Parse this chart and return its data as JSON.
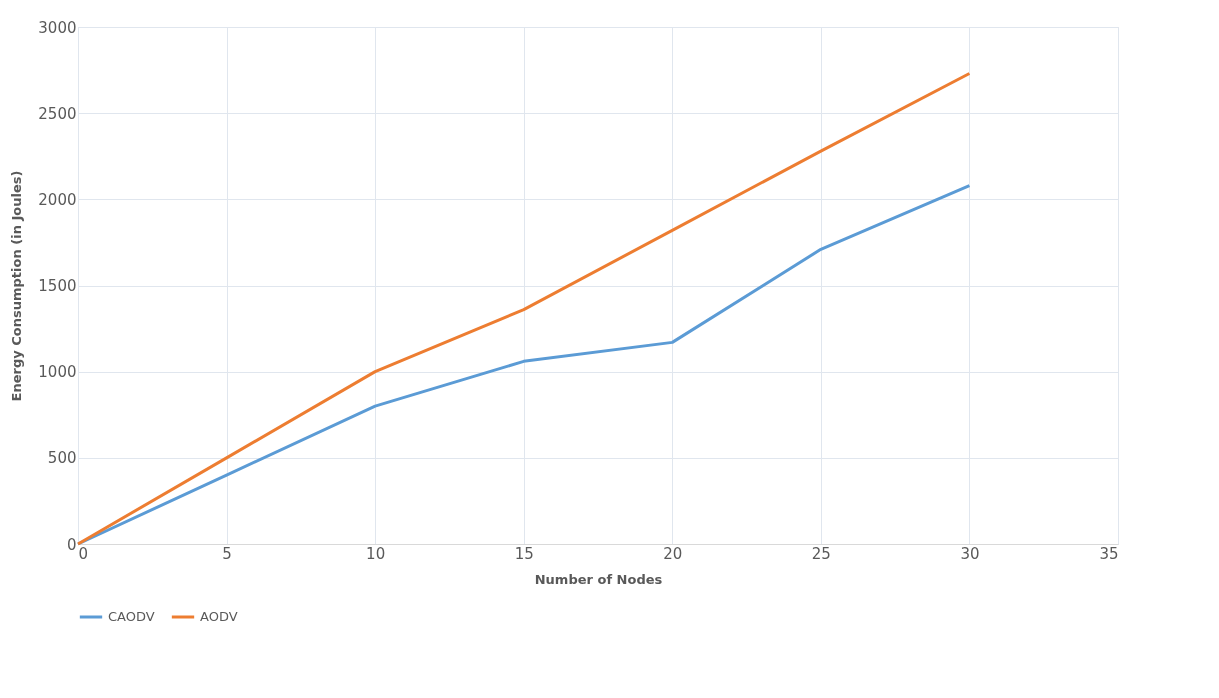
{
  "chart_data": {
    "type": "line",
    "xlabel": "Number of Nodes",
    "ylabel": "Energy Consumption (in Joules)",
    "x": [
      0,
      5,
      10,
      15,
      20,
      25,
      30
    ],
    "series": [
      {
        "name": "CAODV",
        "color": "#5b9bd5",
        "values": [
          0,
          400,
          800,
          1060,
          1170,
          1710,
          2080
        ]
      },
      {
        "name": "AODV",
        "color": "#ed7d31",
        "values": [
          0,
          500,
          1000,
          1360,
          1820,
          2280,
          2730
        ]
      }
    ],
    "xlim": [
      0,
      35
    ],
    "xticks": [
      0,
      5,
      10,
      15,
      20,
      25,
      30,
      35
    ],
    "ylim": [
      0,
      3000
    ],
    "yticks": [
      0,
      500,
      1000,
      1500,
      2000,
      2500,
      3000
    ],
    "grid": true,
    "legend": "bottom",
    "marker": "none",
    "line_style": "solid"
  }
}
